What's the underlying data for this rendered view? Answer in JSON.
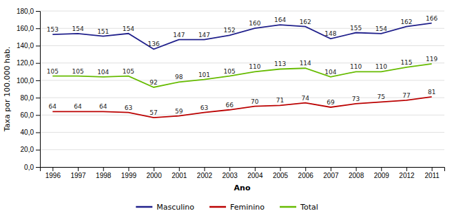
{
  "chart_data": {
    "type": "line",
    "xlabel": "Ano",
    "ylabel": "Taxa por 100.000 hab.",
    "categories": [
      "1996",
      "1997",
      "1998",
      "1999",
      "2000",
      "2001",
      "2002",
      "2003",
      "2004",
      "2005",
      "2006",
      "2007",
      "2008",
      "2009",
      "2012",
      "2011"
    ],
    "series": [
      {
        "name": "Masculino",
        "color": "#1F1F8B",
        "values": [
          153,
          154,
          151,
          154,
          136,
          147,
          147,
          152,
          160,
          164,
          162,
          148,
          155,
          154,
          162,
          166
        ]
      },
      {
        "name": "Feminino",
        "color": "#BB0000",
        "values": [
          64,
          64,
          64,
          63,
          57,
          59,
          63,
          66,
          70,
          71,
          74,
          69,
          73,
          75,
          77,
          81
        ]
      },
      {
        "name": "Total",
        "color": "#66BB00",
        "values": [
          105,
          105,
          104,
          105,
          92,
          98,
          101,
          105,
          110,
          113,
          114,
          104,
          110,
          110,
          115,
          119
        ]
      }
    ],
    "ylim": [
      0,
      180
    ],
    "yticks": [
      {
        "value": 0,
        "label": "0,0"
      },
      {
        "value": 20,
        "label": "20,0"
      },
      {
        "value": 40,
        "label": "40,0"
      },
      {
        "value": 60,
        "label": "60,0"
      },
      {
        "value": 80,
        "label": "80,0"
      },
      {
        "value": 100,
        "label": "100,0"
      },
      {
        "value": 120,
        "label": "120,0"
      },
      {
        "value": 140,
        "label": "140,0"
      },
      {
        "value": 160,
        "label": "160,0"
      },
      {
        "value": 180,
        "label": "180,0"
      }
    ],
    "grid": true,
    "legend": "bottom",
    "data_labels": true
  }
}
